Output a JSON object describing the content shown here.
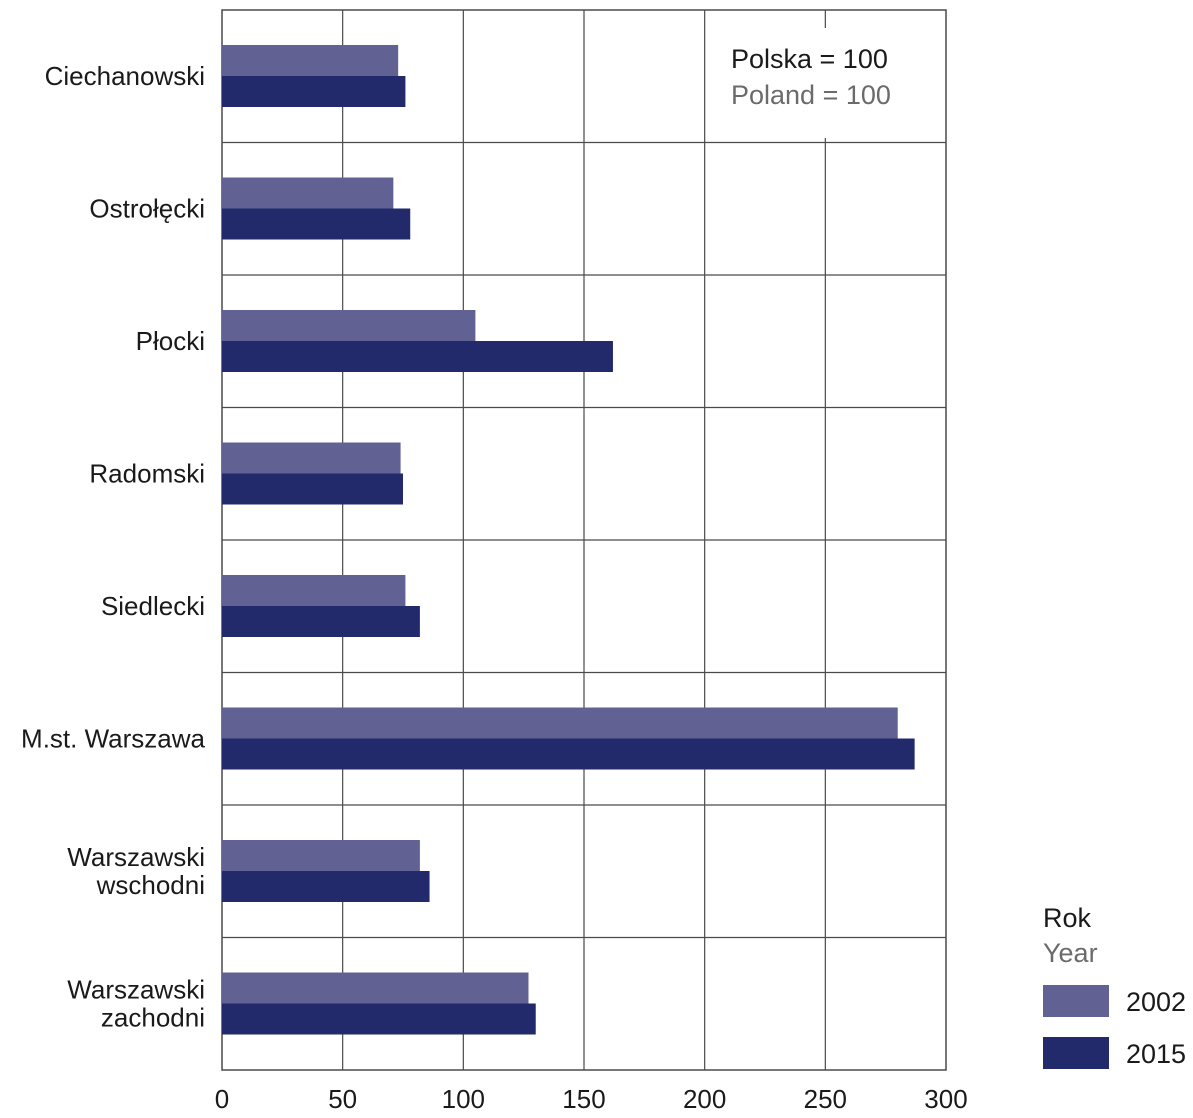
{
  "chart_data": {
    "type": "bar",
    "orientation": "horizontal",
    "categories": [
      [
        "Ciechanowski"
      ],
      [
        "Ostrołęcki"
      ],
      [
        "Płocki"
      ],
      [
        "Radomski"
      ],
      [
        "Siedlecki"
      ],
      [
        "M.st. Warszawa"
      ],
      [
        "Warszawski",
        "wschodni"
      ],
      [
        "Warszawski",
        "zachodni"
      ]
    ],
    "series": [
      {
        "name": "2002",
        "color": "#626193",
        "values": [
          73,
          71,
          105,
          74,
          76,
          280,
          82,
          127
        ]
      },
      {
        "name": "2015",
        "color": "#222a6b",
        "values": [
          76,
          78,
          162,
          75,
          82,
          287,
          86,
          130
        ]
      }
    ],
    "xlim": [
      0,
      300
    ],
    "xticks": [
      "0",
      "50",
      "100",
      "150",
      "200",
      "250",
      "300"
    ],
    "grid": true,
    "annotation": {
      "line1": "Polska = 100",
      "line2": "Poland = 100"
    },
    "legend": {
      "title": "Rok",
      "subtitle": "Year",
      "placement": "bottom-right"
    }
  }
}
